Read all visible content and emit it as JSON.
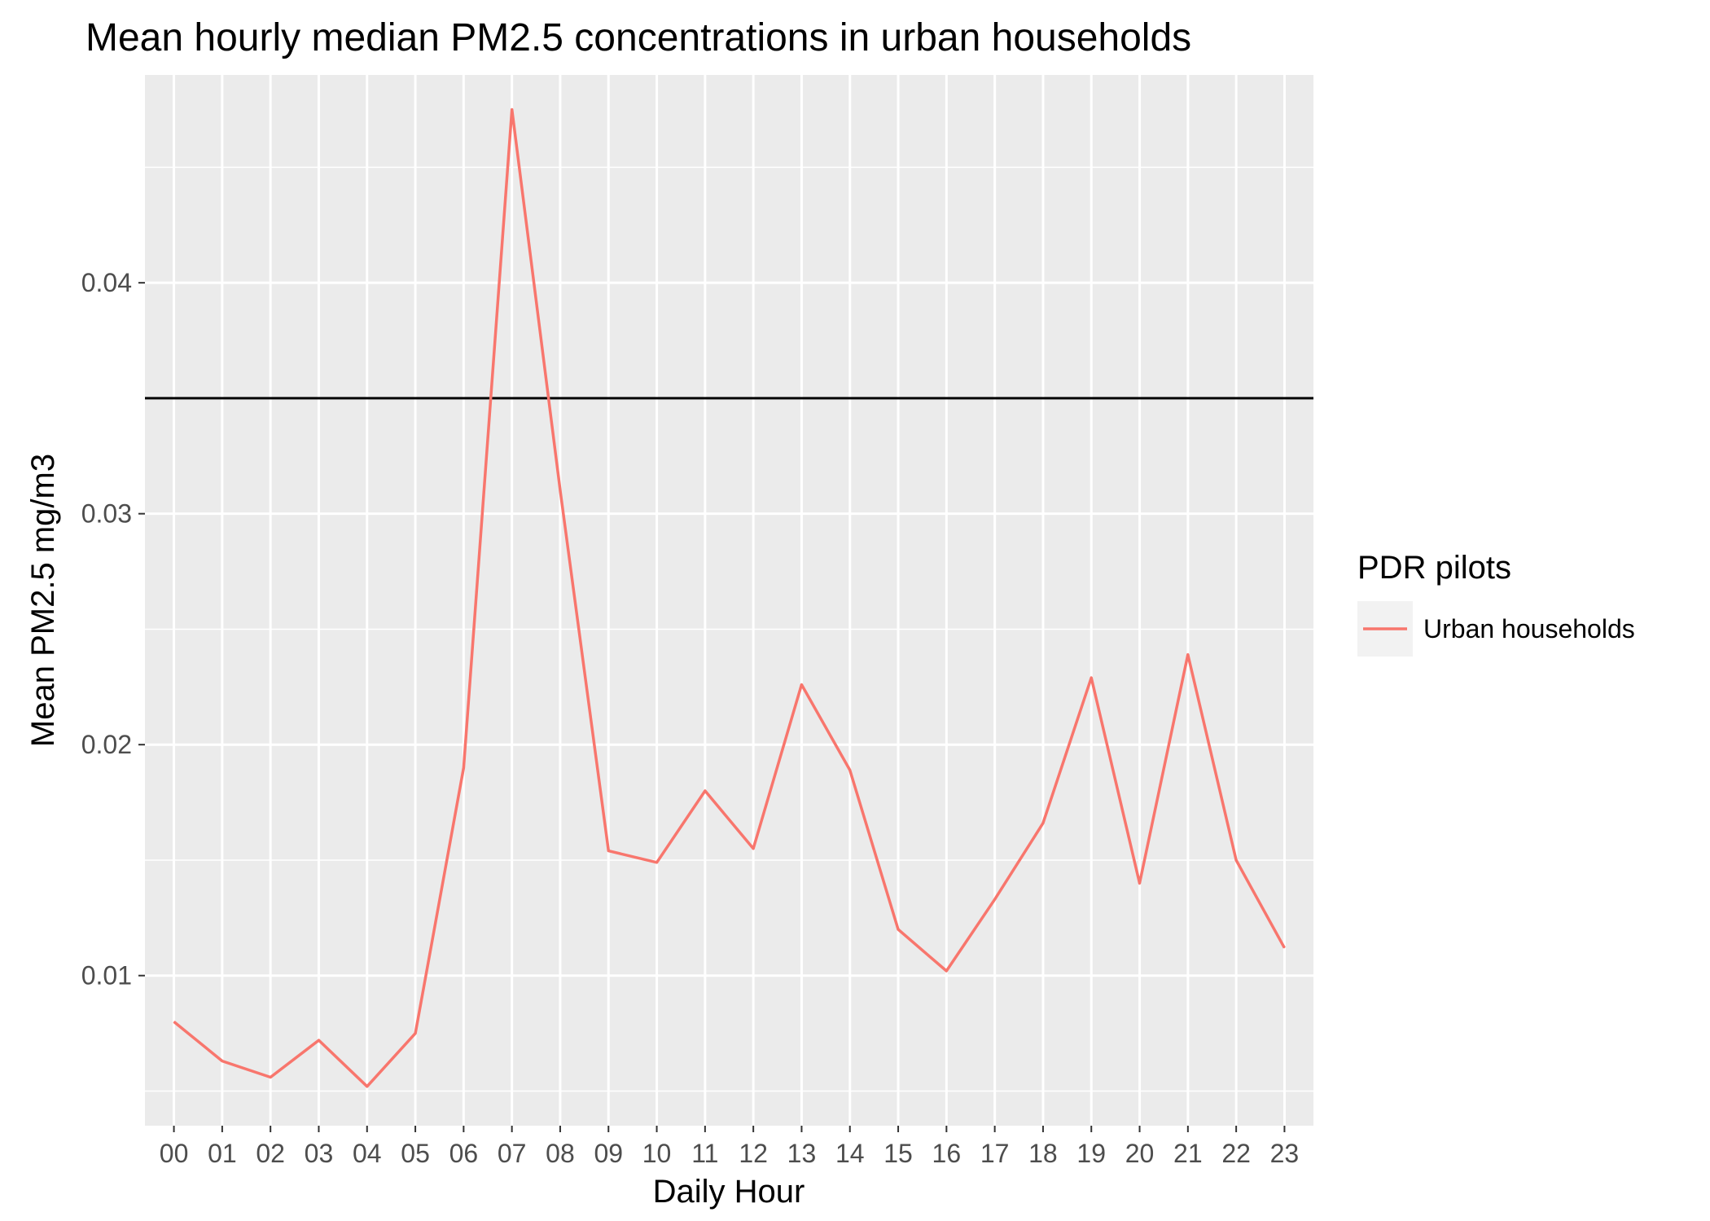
{
  "chart_data": {
    "type": "line",
    "title": "Mean hourly median PM2.5 concentrations in urban households",
    "xlabel": "Daily Hour",
    "ylabel": "Mean PM2.5 mg/m3",
    "categories": [
      "00",
      "01",
      "02",
      "03",
      "04",
      "05",
      "06",
      "07",
      "08",
      "09",
      "10",
      "11",
      "12",
      "13",
      "14",
      "15",
      "16",
      "17",
      "18",
      "19",
      "20",
      "21",
      "22",
      "23"
    ],
    "ylim": [
      0.0035,
      0.049
    ],
    "yticks": [
      0.01,
      0.02,
      0.03,
      0.04
    ],
    "ytick_labels": [
      "0.01",
      "0.02",
      "0.03",
      "0.04"
    ],
    "grid": true,
    "reference_line": {
      "y": 0.035,
      "color": "#000000"
    },
    "series": [
      {
        "name": "Urban households",
        "color": "#f8766d",
        "values": [
          0.008,
          0.0063,
          0.0056,
          0.0072,
          0.0052,
          0.0075,
          0.019,
          0.0475,
          0.031,
          0.0154,
          0.0149,
          0.018,
          0.0155,
          0.0226,
          0.0189,
          0.012,
          0.0102,
          0.0133,
          0.0166,
          0.0229,
          0.014,
          0.0239,
          0.015,
          0.0112
        ]
      }
    ],
    "legend": {
      "title": "PDR pilots",
      "position": "right"
    }
  }
}
